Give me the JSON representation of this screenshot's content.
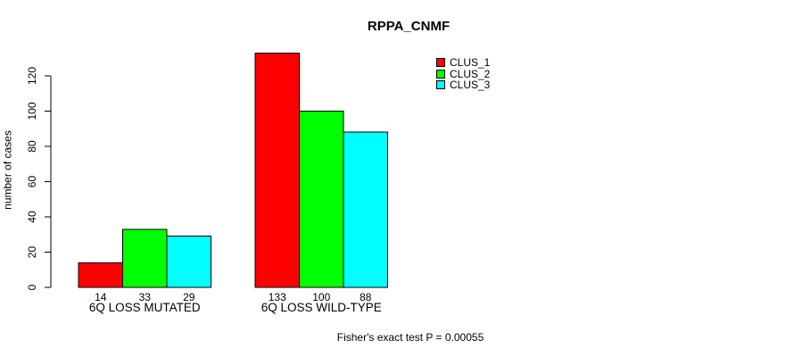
{
  "chart_data": {
    "type": "bar",
    "title": "RPPA_CNMF",
    "xlabel": "",
    "ylabel": "number of cases",
    "categories": [
      "6Q LOSS MUTATED",
      "6Q LOSS WILD-TYPE"
    ],
    "series": [
      {
        "name": "CLUS_1",
        "color": "#ff0000",
        "values": [
          14,
          133
        ]
      },
      {
        "name": "CLUS_2",
        "color": "#00ff00",
        "values": [
          33,
          100
        ]
      },
      {
        "name": "CLUS_3",
        "color": "#00ffff",
        "values": [
          29,
          88
        ]
      }
    ],
    "yticks": [
      0,
      20,
      40,
      60,
      80,
      100,
      120
    ],
    "ylim": [
      0,
      133
    ],
    "show_value_labels": true,
    "grid": false,
    "legend_position": "top-right-inside",
    "bar_border_color": "#000000",
    "annotation": "Fisher's exact test P = 0.00055"
  }
}
